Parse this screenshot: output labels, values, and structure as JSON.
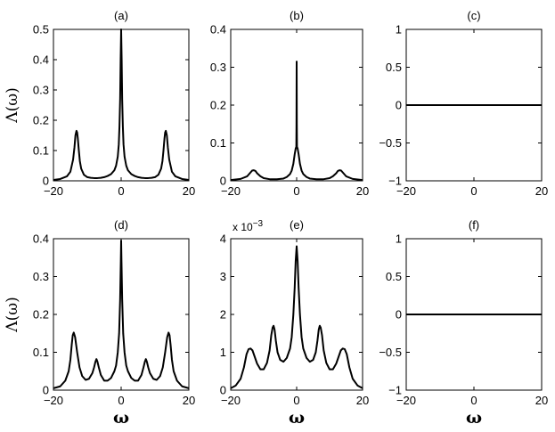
{
  "chart_data": [
    {
      "type": "line",
      "title": "(a)",
      "xlabel": "",
      "ylabel": "Λ(ω)",
      "xlim": [
        -20,
        20
      ],
      "ylim": [
        0,
        0.5
      ],
      "xticks": [
        -20,
        0,
        20
      ],
      "xtick_labels": [
        "−20",
        "0",
        "20"
      ],
      "yticks": [
        0,
        0.1,
        0.2,
        0.3,
        0.4,
        0.5
      ],
      "ytick_labels": [
        "0",
        "0.1",
        "0.2",
        "0.3",
        "0.4",
        "0.5"
      ],
      "grid": false,
      "series": [
        {
          "x": [
            -20,
            -18,
            -16,
            -15,
            -14.2,
            -13.8,
            -13.5,
            -13.2,
            -13,
            -12.8,
            -12.5,
            -12.2,
            -11.8,
            -11,
            -10,
            -9,
            -8,
            -7,
            -6,
            -5,
            -4,
            -3,
            -2,
            -1.5,
            -1,
            -0.7,
            -0.5,
            -0.3,
            -0.15,
            0,
            0.15,
            0.3,
            0.5,
            0.7,
            1,
            1.5,
            2,
            3,
            4,
            5,
            6,
            7,
            8,
            9,
            10,
            11,
            11.8,
            12.2,
            12.5,
            12.8,
            13,
            13.2,
            13.5,
            13.8,
            14.2,
            15,
            16,
            18,
            20
          ],
          "y": [
            0.003,
            0.006,
            0.015,
            0.03,
            0.07,
            0.11,
            0.15,
            0.165,
            0.16,
            0.14,
            0.1,
            0.065,
            0.04,
            0.02,
            0.012,
            0.01,
            0.009,
            0.009,
            0.01,
            0.012,
            0.016,
            0.022,
            0.035,
            0.05,
            0.08,
            0.12,
            0.18,
            0.27,
            0.4,
            0.5,
            0.4,
            0.27,
            0.18,
            0.12,
            0.08,
            0.05,
            0.035,
            0.022,
            0.016,
            0.012,
            0.01,
            0.009,
            0.009,
            0.01,
            0.012,
            0.02,
            0.04,
            0.065,
            0.1,
            0.14,
            0.16,
            0.165,
            0.15,
            0.11,
            0.07,
            0.03,
            0.015,
            0.006,
            0.003
          ]
        }
      ]
    },
    {
      "type": "line",
      "title": "(b)",
      "xlabel": "",
      "ylabel": "",
      "xlim": [
        -20,
        20
      ],
      "ylim": [
        0,
        0.4
      ],
      "xticks": [
        -20,
        0,
        20
      ],
      "xtick_labels": [
        "−20",
        "0",
        "20"
      ],
      "yticks": [
        0,
        0.1,
        0.2,
        0.3,
        0.4
      ],
      "ytick_labels": [
        "0",
        "0.1",
        "0.2",
        "0.3",
        "0.4"
      ],
      "grid": false,
      "series": [
        {
          "x": [
            -20,
            -17,
            -15,
            -14,
            -13.5,
            -13,
            -12.5,
            -12,
            -11,
            -10,
            -8,
            -6,
            -4,
            -3,
            -2,
            -1.5,
            -1,
            -0.6,
            -0.3,
            -0.1,
            -0.05,
            0,
            0.05,
            0.1,
            0.3,
            0.6,
            1,
            1.5,
            2,
            3,
            4,
            6,
            8,
            10,
            11,
            12,
            12.5,
            13,
            13.5,
            14,
            15,
            17,
            20
          ],
          "y": [
            0.002,
            0.005,
            0.012,
            0.022,
            0.027,
            0.028,
            0.026,
            0.02,
            0.012,
            0.007,
            0.004,
            0.004,
            0.006,
            0.01,
            0.018,
            0.027,
            0.045,
            0.07,
            0.085,
            0.09,
            0.15,
            0.315,
            0.15,
            0.09,
            0.085,
            0.07,
            0.045,
            0.027,
            0.018,
            0.01,
            0.006,
            0.004,
            0.004,
            0.007,
            0.012,
            0.02,
            0.026,
            0.028,
            0.027,
            0.022,
            0.012,
            0.005,
            0.002
          ]
        }
      ]
    },
    {
      "type": "line",
      "title": "(c)",
      "xlabel": "",
      "ylabel": "",
      "xlim": [
        -20,
        20
      ],
      "ylim": [
        -1,
        1
      ],
      "xticks": [
        -20,
        0,
        20
      ],
      "xtick_labels": [
        "−20",
        "0",
        "20"
      ],
      "yticks": [
        -1,
        -0.5,
        0,
        0.5,
        1
      ],
      "ytick_labels": [
        "−1",
        "−0.5",
        "0",
        "0.5",
        "1"
      ],
      "grid": false,
      "series": [
        {
          "x": [
            -20,
            20
          ],
          "y": [
            0,
            0
          ]
        }
      ]
    },
    {
      "type": "line",
      "title": "(d)",
      "xlabel": "ω",
      "ylabel": "Λ(ω)",
      "xlim": [
        -20,
        20
      ],
      "ylim": [
        0,
        0.4
      ],
      "xticks": [
        -20,
        0,
        20
      ],
      "xtick_labels": [
        "−20",
        "0",
        "20"
      ],
      "yticks": [
        0,
        0.1,
        0.2,
        0.3,
        0.4
      ],
      "ytick_labels": [
        "0",
        "0.1",
        "0.2",
        "0.3",
        "0.4"
      ],
      "grid": false,
      "series": [
        {
          "x": [
            -20,
            -18,
            -16.5,
            -15.5,
            -15,
            -14.6,
            -14.3,
            -14,
            -13.6,
            -13,
            -12.3,
            -11.5,
            -10.5,
            -9.5,
            -8.5,
            -8,
            -7.6,
            -7.3,
            -7,
            -6.6,
            -6,
            -5,
            -4,
            -3,
            -2,
            -1.5,
            -1,
            -0.6,
            -0.3,
            -0.1,
            0,
            0.1,
            0.3,
            0.6,
            1,
            1.5,
            2,
            3,
            4,
            5,
            6,
            6.6,
            7,
            7.3,
            7.6,
            8,
            8.5,
            9.5,
            10.5,
            11.5,
            12.3,
            13,
            13.6,
            14,
            14.3,
            14.6,
            15,
            15.5,
            16.5,
            18,
            20
          ],
          "y": [
            0.005,
            0.01,
            0.025,
            0.05,
            0.08,
            0.12,
            0.145,
            0.152,
            0.14,
            0.1,
            0.06,
            0.037,
            0.027,
            0.03,
            0.045,
            0.06,
            0.075,
            0.082,
            0.075,
            0.06,
            0.04,
            0.025,
            0.025,
            0.032,
            0.05,
            0.065,
            0.1,
            0.15,
            0.24,
            0.34,
            0.395,
            0.34,
            0.24,
            0.15,
            0.1,
            0.065,
            0.05,
            0.032,
            0.025,
            0.025,
            0.04,
            0.06,
            0.075,
            0.082,
            0.075,
            0.06,
            0.045,
            0.03,
            0.027,
            0.037,
            0.06,
            0.1,
            0.14,
            0.152,
            0.145,
            0.12,
            0.08,
            0.05,
            0.025,
            0.01,
            0.005
          ]
        }
      ]
    },
    {
      "type": "line",
      "title": "(e)",
      "xlabel": "ω",
      "ylabel": "",
      "scale_label": "x 10",
      "scale_exponent": "−3",
      "xlim": [
        -20,
        20
      ],
      "ylim": [
        0,
        4
      ],
      "xticks": [
        -20,
        0,
        20
      ],
      "xtick_labels": [
        "−20",
        "0",
        "20"
      ],
      "yticks": [
        0,
        1,
        2,
        3,
        4
      ],
      "ytick_labels": [
        "0",
        "1",
        "2",
        "3",
        "4"
      ],
      "grid": false,
      "series": [
        {
          "x": [
            -20,
            -18.5,
            -17,
            -16,
            -15.2,
            -14.6,
            -14,
            -13.4,
            -12.8,
            -12,
            -11,
            -10,
            -9,
            -8.2,
            -7.7,
            -7.3,
            -7,
            -6.7,
            -6.3,
            -5.8,
            -5,
            -4,
            -3,
            -2,
            -1.5,
            -1,
            -0.6,
            -0.3,
            0,
            0.3,
            0.6,
            1,
            1.5,
            2,
            3,
            4,
            5,
            5.8,
            6.3,
            6.7,
            7,
            7.3,
            7.7,
            8.2,
            9,
            10,
            11,
            12,
            12.8,
            13.4,
            14,
            14.6,
            15.2,
            16,
            17,
            18.5,
            20
          ],
          "y": [
            0.05,
            0.12,
            0.3,
            0.6,
            0.95,
            1.08,
            1.1,
            1.05,
            0.9,
            0.7,
            0.55,
            0.55,
            0.72,
            1.05,
            1.45,
            1.65,
            1.7,
            1.6,
            1.3,
            1,
            0.8,
            0.75,
            0.85,
            1.1,
            1.4,
            2,
            2.7,
            3.4,
            3.8,
            3.4,
            2.7,
            2,
            1.4,
            1.1,
            0.85,
            0.75,
            0.8,
            1,
            1.3,
            1.6,
            1.7,
            1.65,
            1.45,
            1.05,
            0.72,
            0.55,
            0.55,
            0.7,
            0.9,
            1.05,
            1.1,
            1.08,
            0.95,
            0.6,
            0.3,
            0.12,
            0.05
          ]
        }
      ]
    },
    {
      "type": "line",
      "title": "(f)",
      "xlabel": "ω",
      "ylabel": "",
      "xlim": [
        -20,
        20
      ],
      "ylim": [
        -1,
        1
      ],
      "xticks": [
        -20,
        0,
        20
      ],
      "xtick_labels": [
        "−20",
        "0",
        "20"
      ],
      "yticks": [
        -1,
        -0.5,
        0,
        0.5,
        1
      ],
      "ytick_labels": [
        "−1",
        "−0.5",
        "0",
        "0.5",
        "1"
      ],
      "grid": false,
      "series": [
        {
          "x": [
            -20,
            20
          ],
          "y": [
            0,
            0
          ]
        }
      ]
    }
  ]
}
